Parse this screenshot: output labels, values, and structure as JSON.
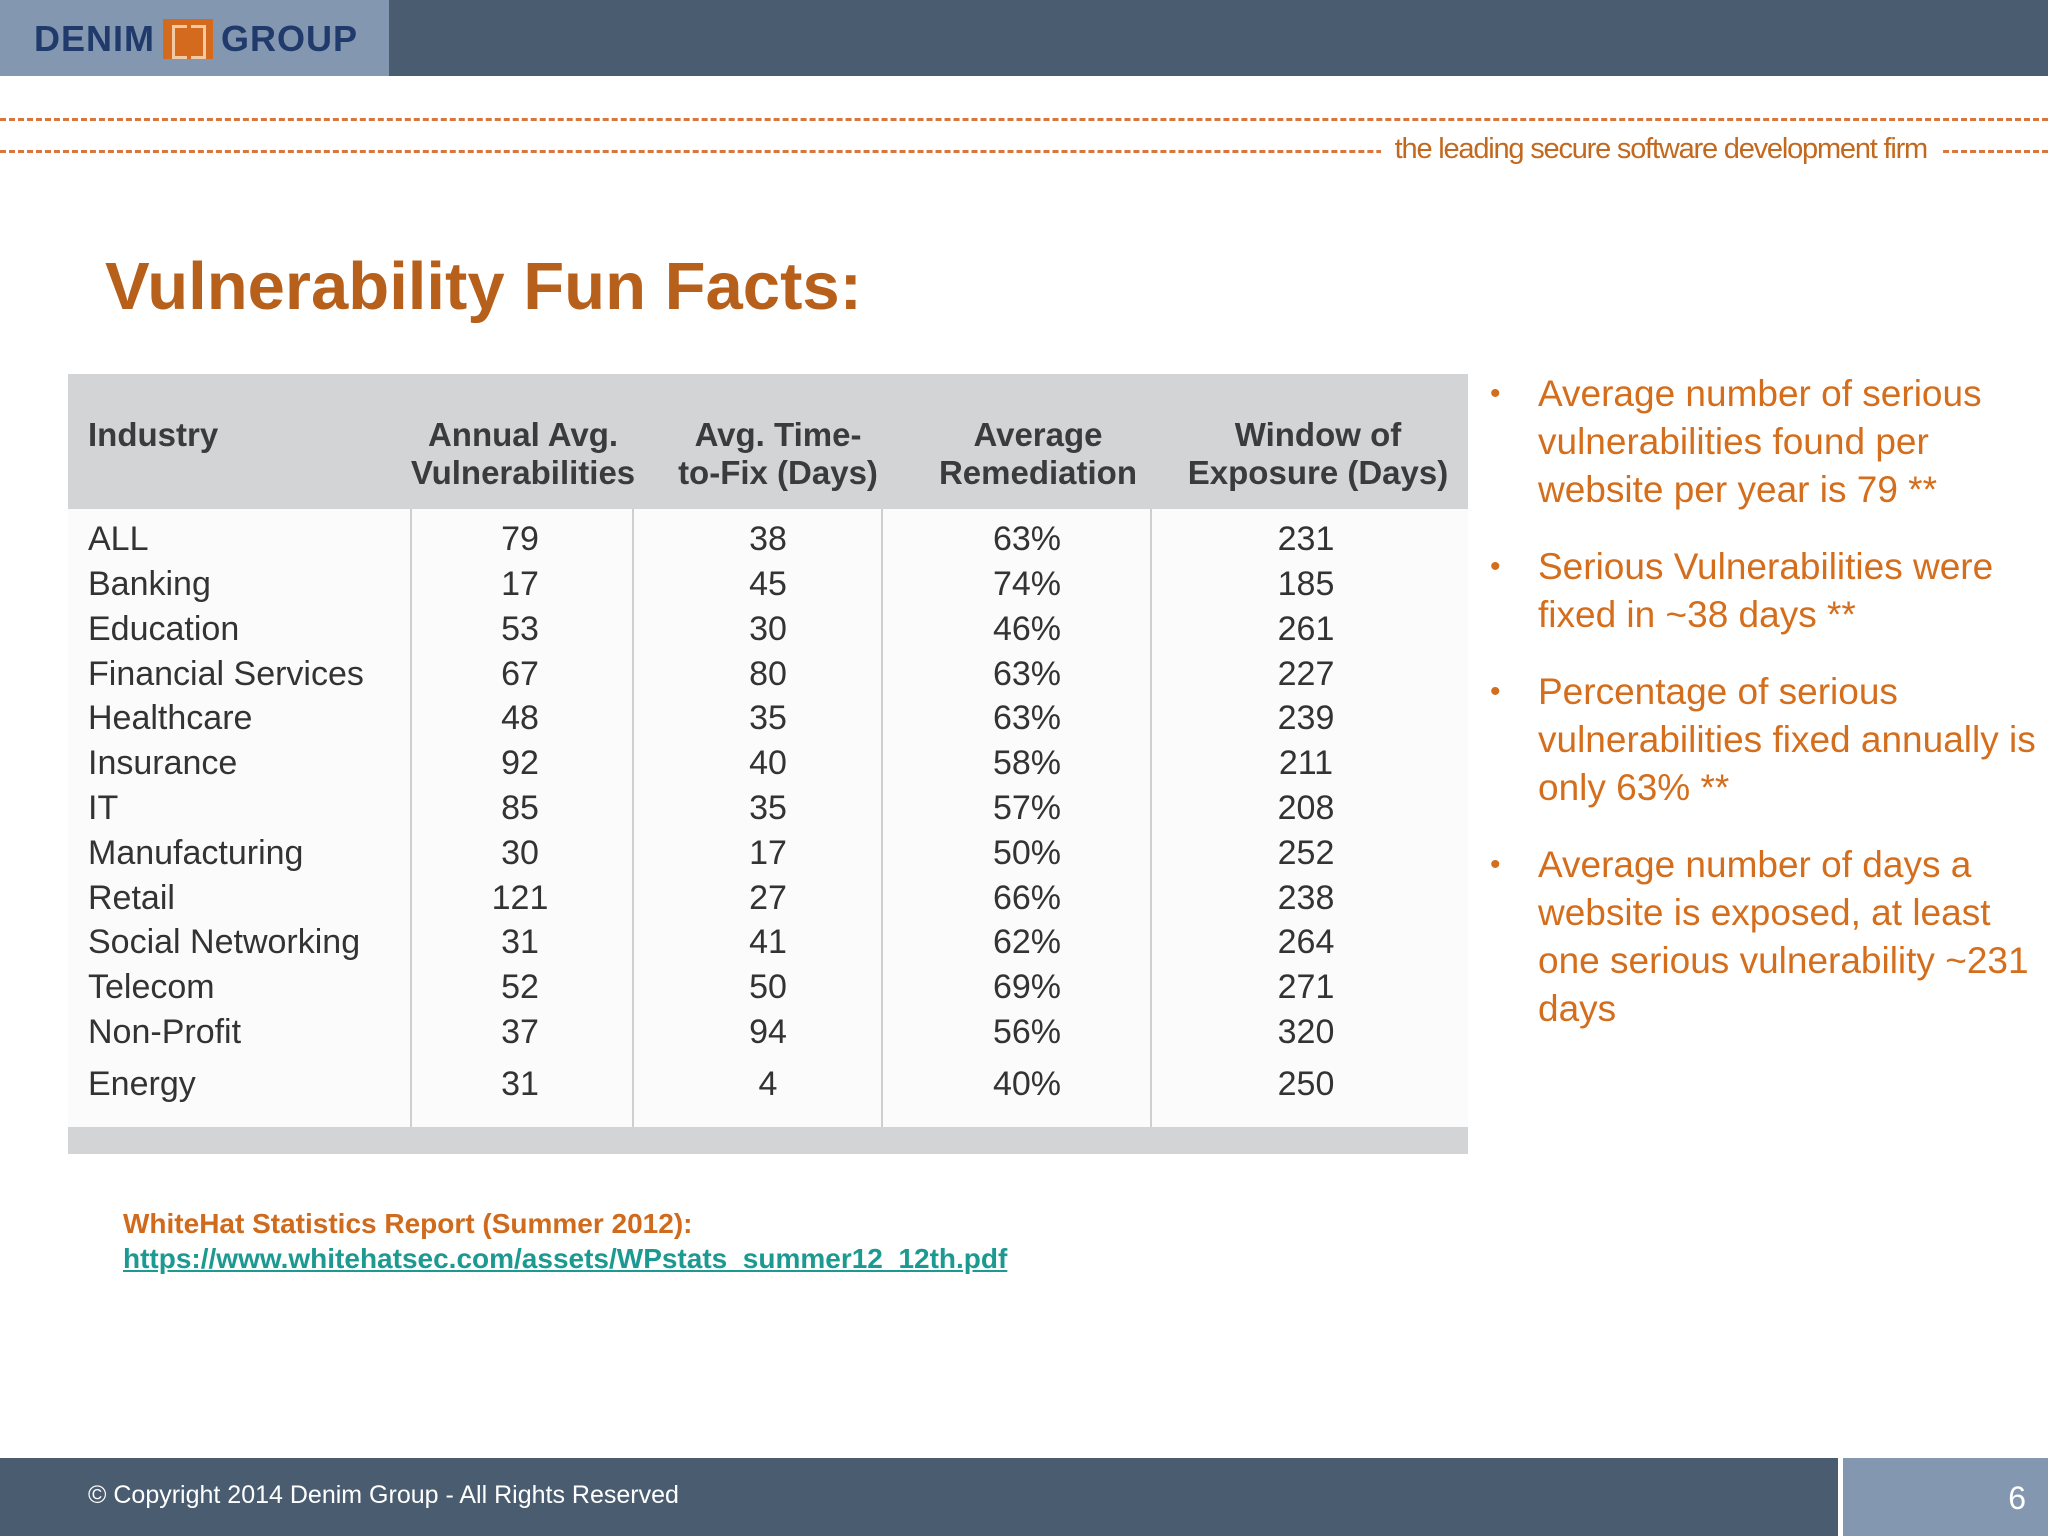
{
  "header": {
    "logo_left": "DENIM",
    "logo_right": "GROUP"
  },
  "tagline": "the leading secure software development firm",
  "title": "Vulnerability Fun Facts:",
  "table": {
    "headers": [
      [
        "Industry",
        ""
      ],
      [
        "Annual Avg.",
        "Vulnerabilities"
      ],
      [
        "Avg. Time-",
        "to-Fix (Days)"
      ],
      [
        "Average",
        "Remediation"
      ],
      [
        "Window of",
        "Exposure (Days)"
      ]
    ],
    "rows": [
      [
        "ALL",
        "79",
        "38",
        "63%",
        "231"
      ],
      [
        "Banking",
        "17",
        "45",
        "74%",
        "185"
      ],
      [
        "Education",
        "53",
        "30",
        "46%",
        "261"
      ],
      [
        "Financial Services",
        "67",
        "80",
        "63%",
        "227"
      ],
      [
        "Healthcare",
        "48",
        "35",
        "63%",
        "239"
      ],
      [
        "Insurance",
        "92",
        "40",
        "58%",
        "211"
      ],
      [
        "IT",
        "85",
        "35",
        "57%",
        "208"
      ],
      [
        "Manufacturing",
        "30",
        "17",
        "50%",
        "252"
      ],
      [
        "Retail",
        "121",
        "27",
        "66%",
        "238"
      ],
      [
        "Social Networking",
        "31",
        "41",
        "62%",
        "264"
      ],
      [
        "Telecom",
        "52",
        "50",
        "69%",
        "271"
      ],
      [
        "Non-Profit",
        "37",
        "94",
        "56%",
        "320"
      ],
      [
        "Energy",
        "31",
        "4",
        "40%",
        "250"
      ]
    ]
  },
  "bullets": [
    "Average number of serious vulnerabilities found per website per year is 79 **",
    "Serious Vulnerabilities were fixed in ~38 days **",
    "Percentage of serious vulnerabilities fixed annually is only 63% **",
    "Average number of days a website is exposed, at least one serious vulnerability ~231 days"
  ],
  "source": {
    "label": "WhiteHat Statistics Report  (Summer 2012):",
    "url": "https://www.whitehatsec.com/assets/WPstats_summer12_12th.pdf"
  },
  "footer": {
    "copyright": "© Copyright 2014  Denim Group - All Rights Reserved",
    "page": "6"
  },
  "colors": {
    "accent": "#d46e1c",
    "title": "#b6601c",
    "bar": "#4a5d70",
    "bar_light": "#8397b0",
    "link": "#1c9a91"
  }
}
